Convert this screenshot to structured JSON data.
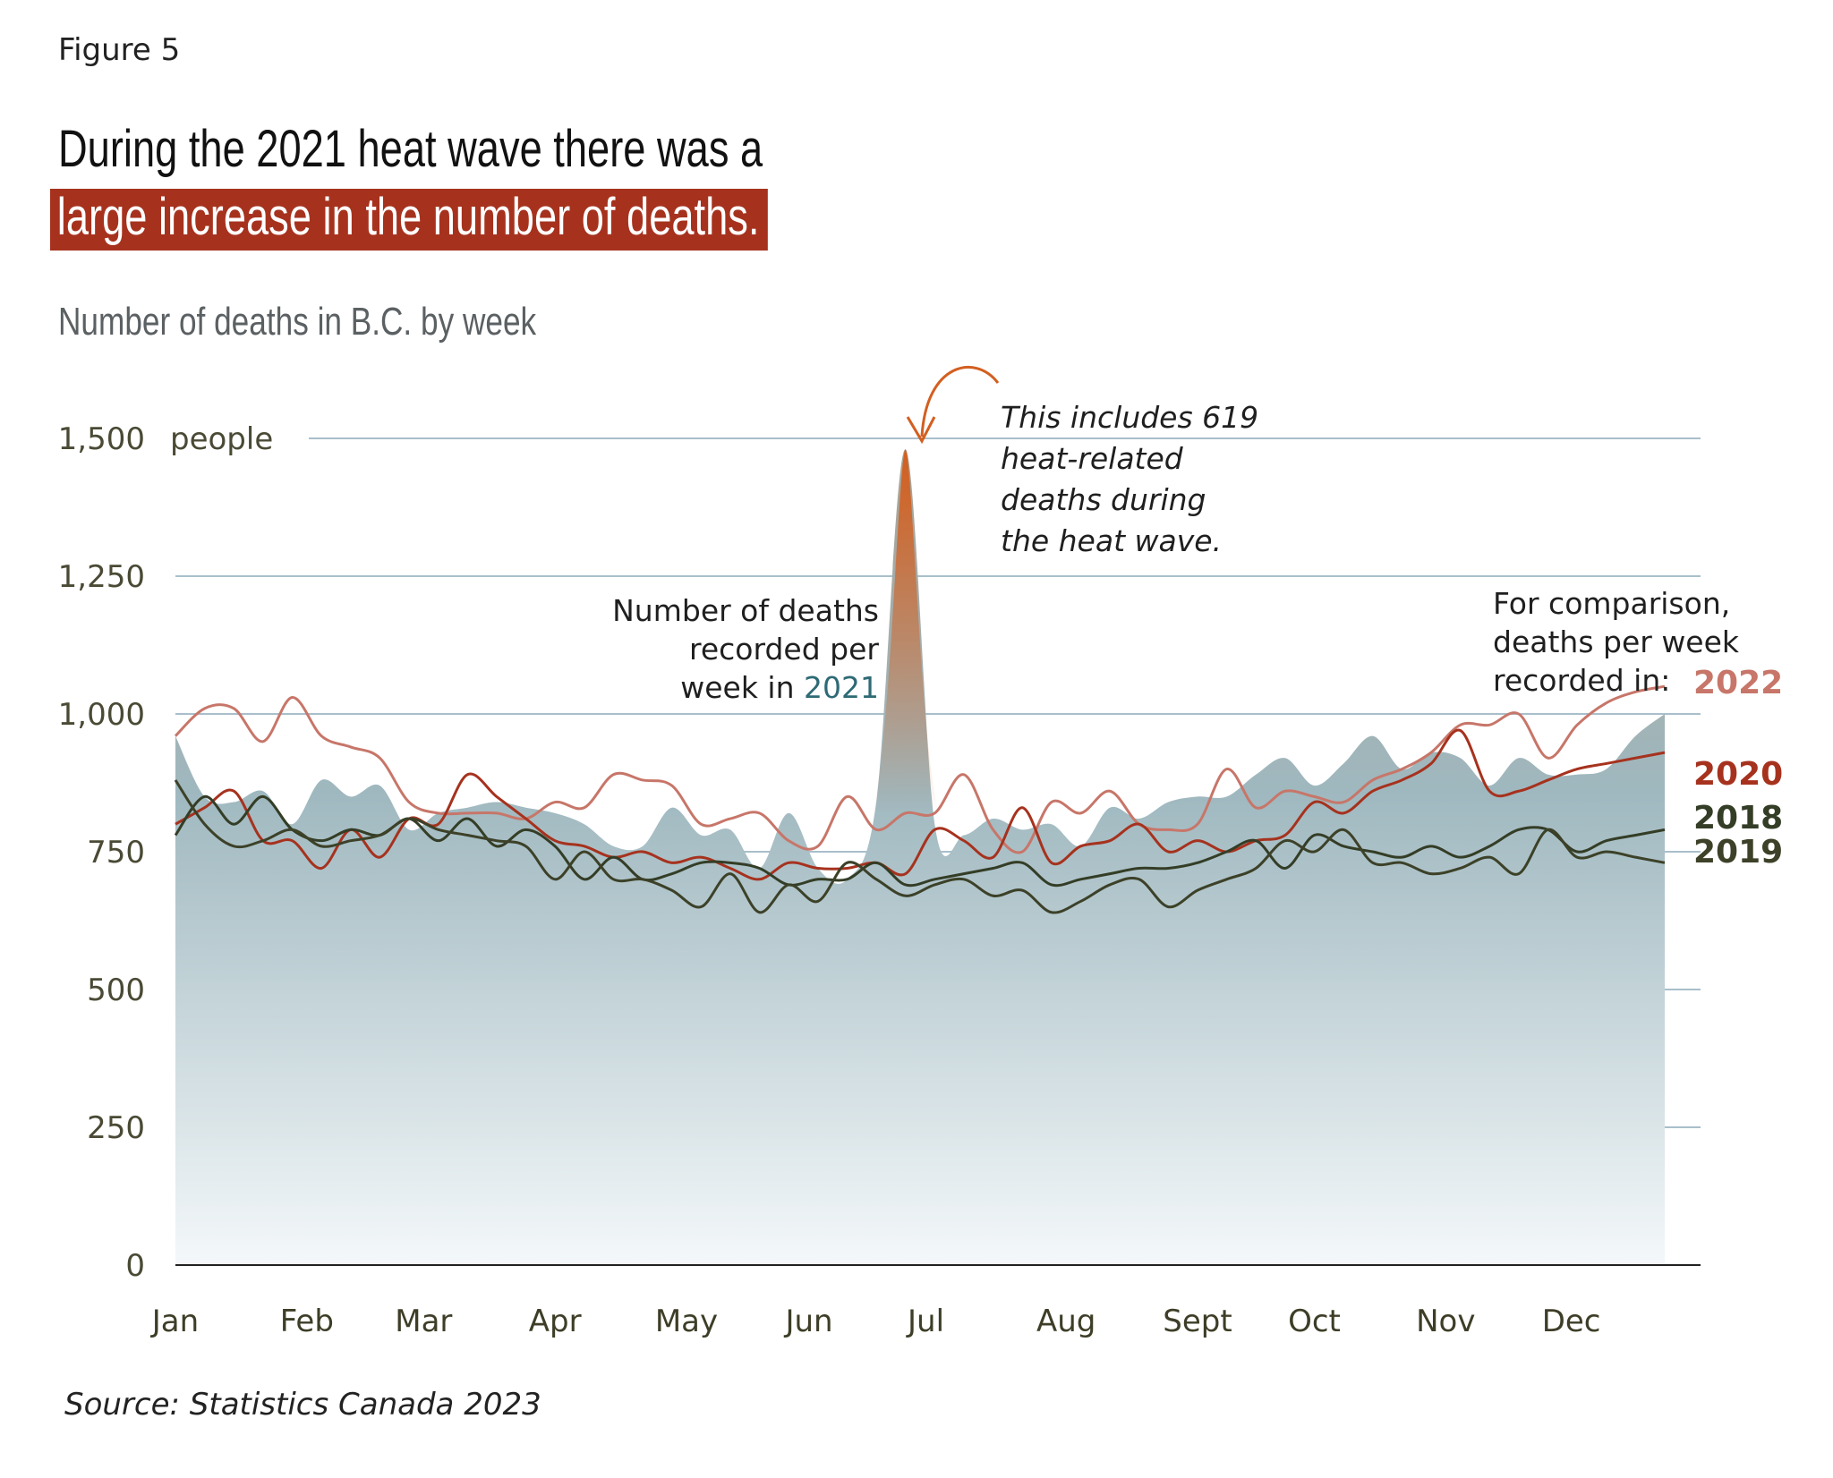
{
  "figure_label": "Figure 5",
  "title_line1": "During the 2021 heat wave there was a",
  "title_line2": "large increase in the number of deaths.",
  "subtitle": "Number of deaths in B.C. by week",
  "source": "Source: Statistics Canada 2023",
  "annotations": {
    "heatwave": [
      "This includes 619",
      "heat-related",
      "deaths during",
      "the heat wave."
    ],
    "main_series": [
      "Number of deaths",
      "recorded per",
      "week in "
    ],
    "main_year": "2021",
    "comparison": [
      "For comparison,",
      "deaths per week",
      "recorded in:"
    ]
  },
  "colors": {
    "y2021_area_top": "#a9a294",
    "y2021_area_bottom": "#f4f8fa",
    "y2021_mid": "#9fb8bf",
    "heat_spike": "#d35f20",
    "y2022": "#c77669",
    "y2020": "#a6321e",
    "y2018": "#343d26",
    "y2019": "#3c4128",
    "grid": "#a9bfcb",
    "title_highlight": "#a6321e",
    "year_2021_label": "#2e6a75"
  },
  "chart_data": {
    "type": "area",
    "title": "Number of deaths in B.C. by week",
    "ylabel": "people",
    "ylim": [
      0,
      1500
    ],
    "yticks": [
      0,
      250,
      500,
      750,
      1000,
      1250,
      1500
    ],
    "ytick_labels": [
      "0",
      "250",
      "500",
      "750",
      "1,000",
      "1,250",
      "1,500"
    ],
    "y_unit_label": "people",
    "xlim": [
      1,
      52
    ],
    "months": [
      "Jan",
      "Feb",
      "Mar",
      "Apr",
      "May",
      "Jun",
      "Jul",
      "Aug",
      "Sept",
      "Oct",
      "Nov",
      "Dec"
    ],
    "month_weeks": [
      1,
      5.5,
      9.5,
      14,
      18.5,
      22.7,
      26.7,
      31.5,
      36,
      40,
      44.5,
      48.8
    ],
    "grid": true,
    "series": [
      {
        "name": "2021",
        "style": "area",
        "x": [
          1,
          2,
          3,
          4,
          5,
          6,
          7,
          8,
          9,
          10,
          11,
          12,
          13,
          14,
          15,
          16,
          17,
          18,
          19,
          20,
          21,
          22,
          23,
          24,
          25,
          26,
          27,
          28,
          29,
          30,
          31,
          32,
          33,
          34,
          35,
          36,
          37,
          38,
          39,
          40,
          41,
          42,
          43,
          44,
          45,
          46,
          47,
          48,
          49,
          50,
          51,
          52
        ],
        "values": [
          960,
          850,
          840,
          860,
          800,
          880,
          850,
          870,
          790,
          820,
          830,
          840,
          830,
          820,
          800,
          760,
          760,
          830,
          780,
          790,
          720,
          820,
          720,
          700,
          840,
          1480,
          800,
          780,
          810,
          790,
          800,
          760,
          830,
          810,
          840,
          850,
          850,
          890,
          920,
          870,
          910,
          960,
          900,
          930,
          920,
          870,
          920,
          890,
          890,
          900,
          960,
          1000
        ]
      },
      {
        "name": "2022",
        "style": "line",
        "x": [
          1,
          2,
          3,
          4,
          5,
          6,
          7,
          8,
          9,
          10,
          11,
          12,
          13,
          14,
          15,
          16,
          17,
          18,
          19,
          20,
          21,
          22,
          23,
          24,
          25,
          26,
          27,
          28,
          29,
          30,
          31,
          32,
          33,
          34,
          35,
          36,
          37,
          38,
          39,
          40,
          41,
          42,
          43,
          44,
          45,
          46,
          47,
          48,
          49,
          50,
          51,
          52
        ],
        "values": [
          960,
          1010,
          1010,
          950,
          1030,
          960,
          940,
          920,
          840,
          820,
          820,
          820,
          810,
          840,
          830,
          890,
          880,
          870,
          800,
          810,
          820,
          770,
          760,
          850,
          790,
          820,
          820,
          890,
          790,
          750,
          840,
          820,
          860,
          800,
          790,
          800,
          900,
          830,
          860,
          850,
          840,
          880,
          900,
          930,
          980,
          980,
          1000,
          920,
          980,
          1020,
          1040,
          1050
        ]
      },
      {
        "name": "2020",
        "style": "line",
        "x": [
          1,
          2,
          3,
          4,
          5,
          6,
          7,
          8,
          9,
          10,
          11,
          12,
          13,
          14,
          15,
          16,
          17,
          18,
          19,
          20,
          21,
          22,
          23,
          24,
          25,
          26,
          27,
          28,
          29,
          30,
          31,
          32,
          33,
          34,
          35,
          36,
          37,
          38,
          39,
          40,
          41,
          42,
          43,
          44,
          45,
          46,
          47,
          48,
          49,
          50,
          51,
          52
        ],
        "values": [
          800,
          830,
          860,
          770,
          770,
          720,
          790,
          740,
          810,
          800,
          890,
          850,
          810,
          770,
          760,
          740,
          750,
          730,
          740,
          720,
          700,
          730,
          720,
          720,
          730,
          710,
          790,
          770,
          740,
          830,
          730,
          760,
          770,
          800,
          750,
          770,
          750,
          770,
          780,
          840,
          820,
          860,
          880,
          910,
          970,
          860,
          860,
          880,
          900,
          910,
          920,
          930
        ]
      },
      {
        "name": "2018",
        "style": "line",
        "x": [
          1,
          2,
          3,
          4,
          5,
          6,
          7,
          8,
          9,
          10,
          11,
          12,
          13,
          14,
          15,
          16,
          17,
          18,
          19,
          20,
          21,
          22,
          23,
          24,
          25,
          26,
          27,
          28,
          29,
          30,
          31,
          32,
          33,
          34,
          35,
          36,
          37,
          38,
          39,
          40,
          41,
          42,
          43,
          44,
          45,
          46,
          47,
          48,
          49,
          50,
          51,
          52
        ],
        "values": [
          780,
          850,
          800,
          850,
          790,
          770,
          790,
          780,
          810,
          770,
          810,
          760,
          790,
          760,
          700,
          740,
          700,
          710,
          730,
          730,
          720,
          690,
          700,
          700,
          730,
          690,
          700,
          710,
          720,
          730,
          690,
          700,
          710,
          720,
          720,
          730,
          750,
          770,
          720,
          780,
          760,
          750,
          740,
          760,
          740,
          760,
          790,
          790,
          750,
          770,
          780,
          790
        ]
      },
      {
        "name": "2019",
        "style": "line",
        "x": [
          1,
          2,
          3,
          4,
          5,
          6,
          7,
          8,
          9,
          10,
          11,
          12,
          13,
          14,
          15,
          16,
          17,
          18,
          19,
          20,
          21,
          22,
          23,
          24,
          25,
          26,
          27,
          28,
          29,
          30,
          31,
          32,
          33,
          34,
          35,
          36,
          37,
          38,
          39,
          40,
          41,
          42,
          43,
          44,
          45,
          46,
          47,
          48,
          49,
          50,
          51,
          52
        ],
        "values": [
          880,
          800,
          760,
          770,
          790,
          760,
          770,
          780,
          810,
          790,
          780,
          770,
          760,
          700,
          750,
          700,
          700,
          680,
          650,
          710,
          640,
          690,
          660,
          730,
          700,
          670,
          690,
          700,
          670,
          680,
          640,
          660,
          690,
          700,
          650,
          680,
          700,
          720,
          770,
          750,
          790,
          730,
          730,
          710,
          720,
          740,
          710,
          790,
          740,
          750,
          740,
          730
        ]
      }
    ],
    "series_labels": [
      "2022",
      "2020",
      "2018",
      "2019"
    ]
  }
}
